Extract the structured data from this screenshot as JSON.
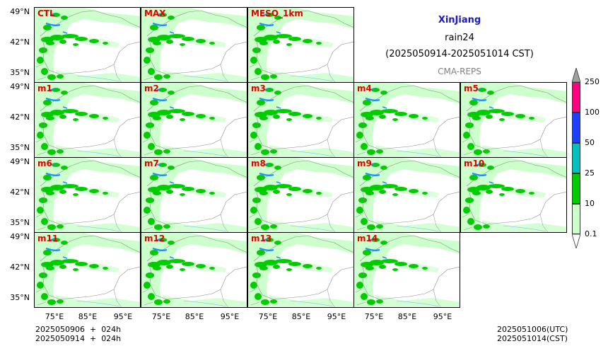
{
  "info": {
    "region": "XinJiang",
    "variable": "rain24",
    "period": "(2025050914-2025051014 CST)",
    "source": "CMA-REPS"
  },
  "panels": {
    "row1": [
      "CTL",
      "MAX",
      "MESO_1km"
    ],
    "row2": [
      "m1",
      "m2",
      "m3",
      "m4",
      "m5"
    ],
    "row3": [
      "m6",
      "m7",
      "m8",
      "m9",
      "m10"
    ],
    "row4": [
      "m11",
      "m12",
      "m13",
      "m14"
    ]
  },
  "lat_ticks": [
    "49°N",
    "42°N",
    "35°N"
  ],
  "lon_ticks": [
    "75°E",
    "85°E",
    "95°E"
  ],
  "footer": {
    "left": "2025050906  +  024h\n2025050914  +  024h",
    "right": "2025051006(UTC)\n2025051014(CST)"
  },
  "colorbar": {
    "levels": [
      "0.1",
      "10",
      "25",
      "50",
      "100",
      "250"
    ],
    "colors": [
      "#ccffcc",
      "#00cc00",
      "#00c0c0",
      "#2040ff",
      "#ff0080"
    ],
    "extend_over_color": "#a0a0a0",
    "extend_under_color": "#ffffff"
  },
  "map_colors": {
    "light_rain": "#ccffcc",
    "moderate_rain": "#00cc00",
    "rivers_lakes": "#1e90ff",
    "borders": "#8c8c8c"
  }
}
